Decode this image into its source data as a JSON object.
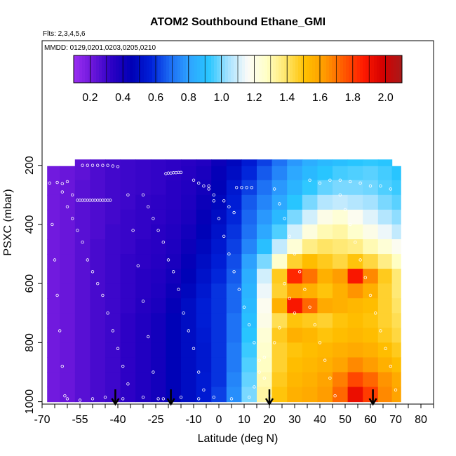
{
  "chart_data": {
    "type": "heatmap",
    "title": "ATOM2 Southbound Ethane_GMI",
    "subtitle_flights": "Flts: 2,3,4,5,6",
    "subtitle_dates": "MMDD: 0129,0201,0203,0205,0210",
    "xlabel": "Latitude (deg N)",
    "ylabel": "PSXC (mbar)",
    "xlim": [
      -70,
      85
    ],
    "ylim": [
      1010,
      0
    ],
    "x_ticks": [
      -70,
      -55,
      -40,
      -25,
      -10,
      0,
      10,
      20,
      30,
      40,
      50,
      60,
      70,
      80
    ],
    "y_ticks": [
      200,
      400,
      600,
      800,
      1000
    ],
    "colorbar": {
      "min": 0.1,
      "max": 2.1,
      "ticks": [
        0.2,
        0.4,
        0.6,
        0.8,
        1.0,
        1.2,
        1.4,
        1.6,
        1.8,
        2.0
      ],
      "tick_labels": [
        "0.2",
        "0.4",
        "0.6",
        "0.8",
        "1.0",
        "1.2",
        "1.4",
        "1.6",
        "1.8",
        "2.0"
      ],
      "colors": [
        "#9a2ef2",
        "#6a16da",
        "#2a00c4",
        "#0000b5",
        "#0020d8",
        "#1c6cf4",
        "#2ea4ff",
        "#28c6ff",
        "#a6e2ff",
        "#fbfbf9",
        "#ffffc6",
        "#ffe66a",
        "#ffc000",
        "#ff9a00",
        "#ff5800",
        "#ff1a00",
        "#d40000",
        "#a81a1a"
      ]
    },
    "data_region": {
      "lat_min": -68,
      "lat_max": 72,
      "p_top_north": 210,
      "p_top_south": 215
    },
    "lat_bins": [
      -66,
      -60,
      -54,
      -48,
      -42,
      -36,
      -30,
      -24,
      -18,
      -12,
      -6,
      0,
      6,
      12,
      18,
      24,
      30,
      36,
      42,
      48,
      54,
      60,
      66,
      71
    ],
    "p_bins": [
      180,
      225,
      275,
      325,
      375,
      425,
      475,
      525,
      575,
      625,
      675,
      725,
      775,
      825,
      875,
      925,
      975
    ],
    "values": [
      [
        0.2,
        0.22,
        0.24,
        0.27,
        0.29,
        0.3,
        0.31,
        0.32,
        0.33,
        0.34,
        0.36,
        0.42,
        0.48,
        0.55,
        0.62,
        0.7,
        0.78,
        0.84,
        0.88,
        0.9,
        0.92,
        0.93,
        0.92,
        0.9
      ],
      [
        0.2,
        0.22,
        0.24,
        0.27,
        0.29,
        0.3,
        0.31,
        0.32,
        0.33,
        0.35,
        0.38,
        0.44,
        0.5,
        0.58,
        0.66,
        0.74,
        0.82,
        0.88,
        0.92,
        0.95,
        0.96,
        0.97,
        0.95,
        0.92
      ],
      [
        0.2,
        0.22,
        0.25,
        0.27,
        0.29,
        0.3,
        0.31,
        0.32,
        0.34,
        0.36,
        0.4,
        0.46,
        0.54,
        0.62,
        0.7,
        0.78,
        0.86,
        0.93,
        0.98,
        1.0,
        1.0,
        0.99,
        0.96,
        0.94
      ],
      [
        0.2,
        0.22,
        0.25,
        0.27,
        0.29,
        0.3,
        0.32,
        0.33,
        0.34,
        0.37,
        0.42,
        0.48,
        0.56,
        0.66,
        0.74,
        0.82,
        0.92,
        1.0,
        1.06,
        1.08,
        1.06,
        1.04,
        1.0,
        0.97
      ],
      [
        0.2,
        0.22,
        0.25,
        0.27,
        0.29,
        0.31,
        0.32,
        0.33,
        0.35,
        0.38,
        0.44,
        0.5,
        0.58,
        0.68,
        0.78,
        0.88,
        1.0,
        1.1,
        1.2,
        1.24,
        1.18,
        1.12,
        1.06,
        1.02
      ],
      [
        0.2,
        0.22,
        0.25,
        0.27,
        0.3,
        0.31,
        0.32,
        0.34,
        0.36,
        0.4,
        0.46,
        0.52,
        0.6,
        0.7,
        0.82,
        0.96,
        1.1,
        1.22,
        1.3,
        1.32,
        1.26,
        1.2,
        1.14,
        1.08
      ],
      [
        0.2,
        0.22,
        0.25,
        0.28,
        0.3,
        0.31,
        0.33,
        0.34,
        0.37,
        0.42,
        0.48,
        0.54,
        0.62,
        0.74,
        0.9,
        1.08,
        1.24,
        1.36,
        1.4,
        1.38,
        1.36,
        1.3,
        1.24,
        1.18
      ],
      [
        0.2,
        0.22,
        0.25,
        0.28,
        0.3,
        0.32,
        0.33,
        0.35,
        0.38,
        0.44,
        0.5,
        0.56,
        0.64,
        0.8,
        1.0,
        1.26,
        1.46,
        1.52,
        1.48,
        1.44,
        1.5,
        1.44,
        1.36,
        1.28
      ],
      [
        0.2,
        0.22,
        0.25,
        0.28,
        0.3,
        0.32,
        0.34,
        0.36,
        0.4,
        0.46,
        0.52,
        0.58,
        0.66,
        0.84,
        1.1,
        1.48,
        1.84,
        1.7,
        1.56,
        1.62,
        1.88,
        1.66,
        1.48,
        1.38
      ],
      [
        0.2,
        0.22,
        0.25,
        0.28,
        0.3,
        0.32,
        0.34,
        0.37,
        0.42,
        0.48,
        0.54,
        0.6,
        0.68,
        0.86,
        1.14,
        1.46,
        1.6,
        1.56,
        1.5,
        1.56,
        1.64,
        1.56,
        1.46,
        1.38
      ],
      [
        0.2,
        0.22,
        0.25,
        0.28,
        0.3,
        0.32,
        0.35,
        0.38,
        0.44,
        0.5,
        0.56,
        0.6,
        0.68,
        0.88,
        1.18,
        1.56,
        1.88,
        1.72,
        1.58,
        1.56,
        1.54,
        1.52,
        1.46,
        1.4
      ],
      [
        0.2,
        0.22,
        0.25,
        0.28,
        0.3,
        0.33,
        0.36,
        0.4,
        0.46,
        0.5,
        0.56,
        0.6,
        0.7,
        0.9,
        1.2,
        1.42,
        1.5,
        1.48,
        1.46,
        1.5,
        1.52,
        1.5,
        1.46,
        1.42
      ],
      [
        0.2,
        0.22,
        0.25,
        0.28,
        0.3,
        0.33,
        0.36,
        0.4,
        0.46,
        0.5,
        0.55,
        0.6,
        0.7,
        0.92,
        1.24,
        1.48,
        1.56,
        1.54,
        1.5,
        1.52,
        1.54,
        1.52,
        1.48,
        1.44
      ],
      [
        0.2,
        0.22,
        0.25,
        0.28,
        0.3,
        0.33,
        0.36,
        0.4,
        0.46,
        0.5,
        0.54,
        0.6,
        0.72,
        0.94,
        1.26,
        1.46,
        1.5,
        1.52,
        1.54,
        1.56,
        1.58,
        1.56,
        1.52,
        1.48
      ],
      [
        0.2,
        0.22,
        0.25,
        0.28,
        0.3,
        0.33,
        0.36,
        0.4,
        0.46,
        0.5,
        0.54,
        0.6,
        0.72,
        0.96,
        1.28,
        1.46,
        1.52,
        1.54,
        1.56,
        1.6,
        1.66,
        1.62,
        1.56,
        1.52
      ],
      [
        0.2,
        0.22,
        0.25,
        0.28,
        0.3,
        0.33,
        0.36,
        0.4,
        0.46,
        0.5,
        0.55,
        0.6,
        0.74,
        0.98,
        1.3,
        1.48,
        1.54,
        1.56,
        1.6,
        1.68,
        1.78,
        1.72,
        1.64,
        1.58
      ],
      [
        0.2,
        0.22,
        0.25,
        0.28,
        0.3,
        0.33,
        0.36,
        0.4,
        0.46,
        0.5,
        0.55,
        0.62,
        0.76,
        1.0,
        1.32,
        1.5,
        1.56,
        1.58,
        1.62,
        1.72,
        1.92,
        1.8,
        1.66,
        1.6
      ]
    ],
    "arrows_lat": [
      -41,
      -19,
      20,
      61
    ],
    "sample_points": [
      [
        -67,
        260
      ],
      [
        -64,
        258
      ],
      [
        -62,
        262
      ],
      [
        -60,
        255
      ],
      [
        -58,
        300
      ],
      [
        -56,
        318
      ],
      [
        -55,
        318
      ],
      [
        -54,
        318
      ],
      [
        -53,
        318
      ],
      [
        -52,
        318
      ],
      [
        -51,
        318
      ],
      [
        -50,
        318
      ],
      [
        -49,
        318
      ],
      [
        -48,
        318
      ],
      [
        -47,
        318
      ],
      [
        -46,
        318
      ],
      [
        -45,
        318
      ],
      [
        -44,
        318
      ],
      [
        -43,
        318
      ],
      [
        -54,
        200
      ],
      [
        -52,
        200
      ],
      [
        -50,
        200
      ],
      [
        -48,
        200
      ],
      [
        -46,
        200
      ],
      [
        -44,
        200
      ],
      [
        -42,
        202
      ],
      [
        -40,
        204
      ],
      [
        -21,
        228
      ],
      [
        -20,
        226
      ],
      [
        -19,
        226
      ],
      [
        -18,
        225
      ],
      [
        -17,
        225
      ],
      [
        -16,
        224
      ],
      [
        -15,
        224
      ],
      [
        7,
        275
      ],
      [
        9,
        275
      ],
      [
        11,
        275
      ],
      [
        13,
        275
      ],
      [
        -62,
        290
      ],
      [
        -60,
        340
      ],
      [
        -58,
        380
      ],
      [
        -56,
        420
      ],
      [
        -54,
        460
      ],
      [
        -52,
        520
      ],
      [
        -50,
        560
      ],
      [
        -48,
        600
      ],
      [
        -46,
        640
      ],
      [
        -44,
        700
      ],
      [
        -42,
        760
      ],
      [
        -40,
        820
      ],
      [
        -38,
        880
      ],
      [
        -36,
        940
      ],
      [
        -30,
        300
      ],
      [
        -28,
        340
      ],
      [
        -26,
        380
      ],
      [
        -24,
        420
      ],
      [
        -22,
        460
      ],
      [
        -20,
        520
      ],
      [
        -18,
        560
      ],
      [
        -16,
        620
      ],
      [
        -14,
        700
      ],
      [
        -12,
        760
      ],
      [
        -10,
        820
      ],
      [
        -8,
        900
      ],
      [
        -6,
        960
      ],
      [
        -4,
        270
      ],
      [
        -2,
        320
      ],
      [
        0,
        380
      ],
      [
        2,
        440
      ],
      [
        4,
        500
      ],
      [
        6,
        560
      ],
      [
        8,
        620
      ],
      [
        10,
        680
      ],
      [
        12,
        740
      ],
      [
        14,
        800
      ],
      [
        16,
        860
      ],
      [
        18,
        920
      ],
      [
        20,
        980
      ],
      [
        22,
        280
      ],
      [
        24,
        330
      ],
      [
        26,
        380
      ],
      [
        28,
        440
      ],
      [
        30,
        500
      ],
      [
        32,
        560
      ],
      [
        34,
        620
      ],
      [
        36,
        680
      ],
      [
        38,
        740
      ],
      [
        40,
        800
      ],
      [
        42,
        860
      ],
      [
        44,
        920
      ],
      [
        46,
        980
      ],
      [
        48,
        300
      ],
      [
        50,
        350
      ],
      [
        52,
        400
      ],
      [
        54,
        460
      ],
      [
        56,
        520
      ],
      [
        58,
        580
      ],
      [
        60,
        640
      ],
      [
        62,
        700
      ],
      [
        64,
        760
      ],
      [
        66,
        820
      ],
      [
        68,
        880
      ],
      [
        70,
        960
      ],
      [
        -66,
        400
      ],
      [
        -65,
        520
      ],
      [
        -64,
        640
      ],
      [
        -63,
        760
      ],
      [
        -62,
        880
      ],
      [
        -61,
        980
      ],
      [
        -36,
        300
      ],
      [
        -34,
        420
      ],
      [
        -32,
        540
      ],
      [
        -30,
        660
      ],
      [
        -28,
        780
      ],
      [
        -26,
        900
      ],
      [
        -24,
        990
      ],
      [
        36,
        250
      ],
      [
        40,
        260
      ],
      [
        44,
        250
      ],
      [
        48,
        250
      ],
      [
        52,
        255
      ],
      [
        56,
        260
      ],
      [
        60,
        270
      ],
      [
        64,
        270
      ],
      [
        68,
        280
      ],
      [
        -10,
        250
      ],
      [
        -8,
        260
      ],
      [
        -6,
        270
      ],
      [
        -4,
        280
      ],
      [
        -2,
        300
      ],
      [
        2,
        320
      ],
      [
        4,
        340
      ],
      [
        6,
        360
      ],
      [
        26,
        600
      ],
      [
        28,
        650
      ],
      [
        30,
        700
      ],
      [
        24,
        750
      ],
      [
        22,
        800
      ],
      [
        18,
        850
      ],
      [
        16,
        900
      ],
      [
        14,
        950
      ],
      [
        -60,
        990
      ],
      [
        -55,
        995
      ],
      [
        -50,
        990
      ],
      [
        -45,
        985
      ],
      [
        -38,
        990
      ],
      [
        -30,
        985
      ],
      [
        -22,
        990
      ],
      [
        -15,
        985
      ],
      [
        -8,
        990
      ],
      [
        -2,
        985
      ],
      [
        5,
        990
      ],
      [
        12,
        985
      ]
    ]
  }
}
